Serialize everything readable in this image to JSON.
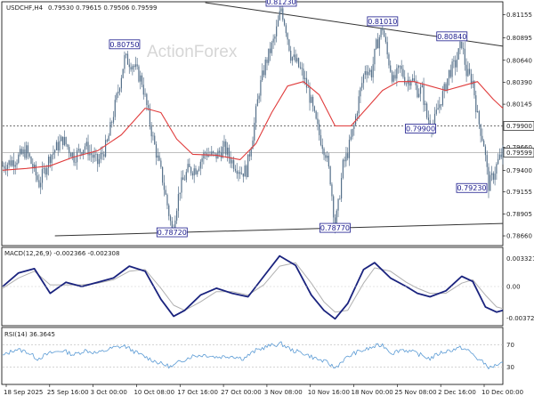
{
  "header": {
    "symbol": "USDCHF,H4",
    "ohlc": "0.79530 0.79615 0.79506 0.79599"
  },
  "watermark": "ActionForex",
  "colors": {
    "candles": "#55708a",
    "ma": "#e03c3c",
    "macd_main": "#1a237e",
    "macd_signal": "#b0b0b0",
    "rsi": "#5b9bd5",
    "label_border": "#1a1a8c",
    "current_box": "#3a3a3a"
  },
  "chart_data": [
    {
      "type": "candlestick",
      "name": "price",
      "ylim": [
        0.7856,
        0.8129
      ],
      "y_ticks": [
        "0.81155",
        "0.80895",
        "0.80640",
        "0.80390",
        "0.80145",
        "0.79660",
        "0.79400",
        "0.79155",
        "0.78905",
        "0.78660"
      ],
      "x_ticks": [
        "18 Sep 2025",
        "25 Sep 16:00",
        "3 Oct 00:00",
        "10 Oct 08:00",
        "17 Oct 16:00",
        "27 Oct 00:00",
        "3 Nov 08:00",
        "10 Nov 16:00",
        "18 Nov 00:00",
        "25 Nov 08:00",
        "2 Dec 16:00",
        "10 Dec 00:00"
      ],
      "close_path": [
        [
          0,
          0.7945
        ],
        [
          8,
          0.7952
        ],
        [
          15,
          0.7962
        ],
        [
          23,
          0.7925
        ],
        [
          30,
          0.7956
        ],
        [
          38,
          0.7975
        ],
        [
          45,
          0.7955
        ],
        [
          52,
          0.7968
        ],
        [
          60,
          0.7948
        ],
        [
          66,
          0.797
        ],
        [
          73,
          0.803
        ],
        [
          77,
          0.8066
        ],
        [
          82,
          0.806
        ],
        [
          88,
          0.804
        ],
        [
          95,
          0.7975
        ],
        [
          101,
          0.793
        ],
        [
          107,
          0.7872
        ],
        [
          112,
          0.792
        ],
        [
          117,
          0.794
        ],
        [
          122,
          0.7942
        ],
        [
          128,
          0.796
        ],
        [
          134,
          0.7955
        ],
        [
          140,
          0.7965
        ],
        [
          145,
          0.795
        ],
        [
          151,
          0.7938
        ],
        [
          154,
          0.794
        ],
        [
          158,
          0.798
        ],
        [
          162,
          0.803
        ],
        [
          166,
          0.806
        ],
        [
          169,
          0.8075
        ],
        [
          172,
          0.809
        ],
        [
          176,
          0.8123
        ],
        [
          179,
          0.81
        ],
        [
          182,
          0.807
        ],
        [
          186,
          0.806
        ],
        [
          189,
          0.805
        ],
        [
          193,
          0.803
        ],
        [
          197,
          0.8
        ],
        [
          200,
          0.798
        ],
        [
          204,
          0.796
        ],
        [
          207,
          0.793
        ],
        [
          210,
          0.7877
        ],
        [
          212,
          0.79
        ],
        [
          215,
          0.7945
        ],
        [
          218,
          0.796
        ],
        [
          222,
          0.799
        ],
        [
          226,
          0.803
        ],
        [
          229,
          0.8055
        ],
        [
          233,
          0.805
        ],
        [
          236,
          0.808
        ],
        [
          240,
          0.8101
        ],
        [
          243,
          0.807
        ],
        [
          247,
          0.804
        ],
        [
          251,
          0.8055
        ],
        [
          255,
          0.804
        ],
        [
          258,
          0.8045
        ],
        [
          262,
          0.803
        ],
        [
          265,
          0.803
        ],
        [
          268,
          0.8
        ],
        [
          272,
          0.799
        ],
        [
          275,
          0.801
        ],
        [
          279,
          0.803
        ],
        [
          282,
          0.805
        ],
        [
          286,
          0.806
        ],
        [
          290,
          0.8084
        ],
        [
          293,
          0.805
        ],
        [
          297,
          0.804
        ],
        [
          300,
          0.8
        ],
        [
          304,
          0.797
        ],
        [
          307,
          0.7923
        ],
        [
          310,
          0.7935
        ],
        [
          313,
          0.795
        ],
        [
          316,
          0.796
        ]
      ],
      "ma_path": [
        [
          0,
          0.794
        ],
        [
          15,
          0.7942
        ],
        [
          30,
          0.7945
        ],
        [
          45,
          0.7955
        ],
        [
          60,
          0.7962
        ],
        [
          75,
          0.798
        ],
        [
          90,
          0.801
        ],
        [
          100,
          0.8005
        ],
        [
          110,
          0.7975
        ],
        [
          120,
          0.7958
        ],
        [
          135,
          0.7957
        ],
        [
          150,
          0.7952
        ],
        [
          160,
          0.797
        ],
        [
          170,
          0.8005
        ],
        [
          180,
          0.8035
        ],
        [
          190,
          0.804
        ],
        [
          200,
          0.8025
        ],
        [
          210,
          0.799
        ],
        [
          220,
          0.799
        ],
        [
          230,
          0.801
        ],
        [
          240,
          0.803
        ],
        [
          250,
          0.804
        ],
        [
          260,
          0.804
        ],
        [
          270,
          0.8035
        ],
        [
          280,
          0.803
        ],
        [
          290,
          0.8035
        ],
        [
          300,
          0.804
        ],
        [
          310,
          0.802
        ],
        [
          316,
          0.801
        ]
      ],
      "resistance_line": [
        [
          128,
          0.8129
        ],
        [
          316,
          0.808
        ]
      ],
      "support_line": [
        [
          33,
          0.7866
        ],
        [
          316,
          0.788
        ]
      ],
      "horizontal_level": 0.799,
      "current_price": 0.79599,
      "labels": [
        {
          "text": "0.80750",
          "x": 77,
          "y": 0.8075
        },
        {
          "text": "0.78720",
          "x": 107,
          "y": 0.7872
        },
        {
          "text": "0.81230",
          "x": 176,
          "y": 0.8123
        },
        {
          "text": "0.78770",
          "x": 210,
          "y": 0.7877
        },
        {
          "text": "0.81010",
          "x": 240,
          "y": 0.8101
        },
        {
          "text": "0.80840",
          "x": 290,
          "y": 0.8084
        },
        {
          "text": "0.79900",
          "x": 264,
          "y": 0.799
        },
        {
          "text": "0.79230",
          "x": 307,
          "y": 0.7923
        }
      ],
      "right_labels": [
        "0.79900",
        "0.79599"
      ]
    },
    {
      "type": "line",
      "name": "MACD(12,26,9) -0.002366 -0.002308",
      "ylim": [
        -0.0045,
        0.0045
      ],
      "y_ticks": [
        "0.003321",
        "0.00",
        "-0.003723"
      ],
      "macd_path": [
        [
          0,
          0.0
        ],
        [
          10,
          0.0016
        ],
        [
          20,
          0.0021
        ],
        [
          30,
          -0.0008
        ],
        [
          40,
          0.0005
        ],
        [
          50,
          0.0
        ],
        [
          60,
          0.0005
        ],
        [
          70,
          0.001
        ],
        [
          80,
          0.0024
        ],
        [
          90,
          0.0018
        ],
        [
          100,
          -0.0015
        ],
        [
          108,
          -0.0035
        ],
        [
          115,
          -0.0028
        ],
        [
          125,
          -0.001
        ],
        [
          135,
          -0.0002
        ],
        [
          145,
          -0.0008
        ],
        [
          155,
          -0.0012
        ],
        [
          165,
          0.0012
        ],
        [
          175,
          0.0036
        ],
        [
          185,
          0.0025
        ],
        [
          195,
          -0.001
        ],
        [
          203,
          -0.0028
        ],
        [
          210,
          -0.0038
        ],
        [
          218,
          -0.002
        ],
        [
          228,
          0.002
        ],
        [
          235,
          0.0028
        ],
        [
          245,
          0.001
        ],
        [
          255,
          0.0
        ],
        [
          262,
          -0.0008
        ],
        [
          270,
          -0.0012
        ],
        [
          280,
          -0.0005
        ],
        [
          290,
          0.0012
        ],
        [
          297,
          0.0006
        ],
        [
          305,
          -0.0024
        ],
        [
          312,
          -0.003
        ],
        [
          316,
          -0.0028
        ]
      ],
      "signal_path": [
        [
          0,
          -0.0002
        ],
        [
          10,
          0.001
        ],
        [
          20,
          0.0018
        ],
        [
          30,
          0.0002
        ],
        [
          40,
          0.0002
        ],
        [
          50,
          0.0002
        ],
        [
          60,
          0.0004
        ],
        [
          70,
          0.0008
        ],
        [
          80,
          0.0018
        ],
        [
          90,
          0.002
        ],
        [
          100,
          -0.0002
        ],
        [
          108,
          -0.0022
        ],
        [
          115,
          -0.0028
        ],
        [
          125,
          -0.0018
        ],
        [
          135,
          -0.0006
        ],
        [
          145,
          -0.0006
        ],
        [
          155,
          -0.001
        ],
        [
          165,
          0.0002
        ],
        [
          175,
          0.0024
        ],
        [
          185,
          0.0028
        ],
        [
          195,
          0.0004
        ],
        [
          203,
          -0.0018
        ],
        [
          210,
          -0.003
        ],
        [
          218,
          -0.0028
        ],
        [
          228,
          0.0004
        ],
        [
          235,
          0.0022
        ],
        [
          245,
          0.0018
        ],
        [
          255,
          0.0005
        ],
        [
          262,
          -0.0002
        ],
        [
          270,
          -0.0008
        ],
        [
          280,
          -0.0008
        ],
        [
          290,
          0.0004
        ],
        [
          297,
          0.0008
        ],
        [
          305,
          -0.001
        ],
        [
          312,
          -0.0024
        ],
        [
          316,
          -0.0026
        ]
      ]
    },
    {
      "type": "line",
      "name": "RSI(14) 36.3645",
      "ylim": [
        0,
        100
      ],
      "y_ticks": [
        "70",
        "30"
      ],
      "rsi_path": [
        [
          0,
          50
        ],
        [
          8,
          62
        ],
        [
          15,
          58
        ],
        [
          22,
          45
        ],
        [
          30,
          55
        ],
        [
          38,
          60
        ],
        [
          45,
          52
        ],
        [
          52,
          60
        ],
        [
          60,
          55
        ],
        [
          70,
          65
        ],
        [
          77,
          68
        ],
        [
          85,
          55
        ],
        [
          95,
          42
        ],
        [
          101,
          35
        ],
        [
          107,
          30
        ],
        [
          112,
          40
        ],
        [
          120,
          50
        ],
        [
          128,
          52
        ],
        [
          135,
          48
        ],
        [
          145,
          50
        ],
        [
          152,
          45
        ],
        [
          160,
          60
        ],
        [
          168,
          68
        ],
        [
          176,
          72
        ],
        [
          183,
          60
        ],
        [
          190,
          55
        ],
        [
          198,
          45
        ],
        [
          205,
          38
        ],
        [
          210,
          28
        ],
        [
          215,
          42
        ],
        [
          222,
          55
        ],
        [
          230,
          62
        ],
        [
          236,
          68
        ],
        [
          240,
          70
        ],
        [
          246,
          55
        ],
        [
          252,
          62
        ],
        [
          258,
          58
        ],
        [
          264,
          52
        ],
        [
          270,
          45
        ],
        [
          276,
          55
        ],
        [
          282,
          60
        ],
        [
          290,
          65
        ],
        [
          295,
          58
        ],
        [
          300,
          45
        ],
        [
          305,
          35
        ],
        [
          308,
          28
        ],
        [
          312,
          34
        ],
        [
          316,
          36
        ]
      ]
    }
  ]
}
